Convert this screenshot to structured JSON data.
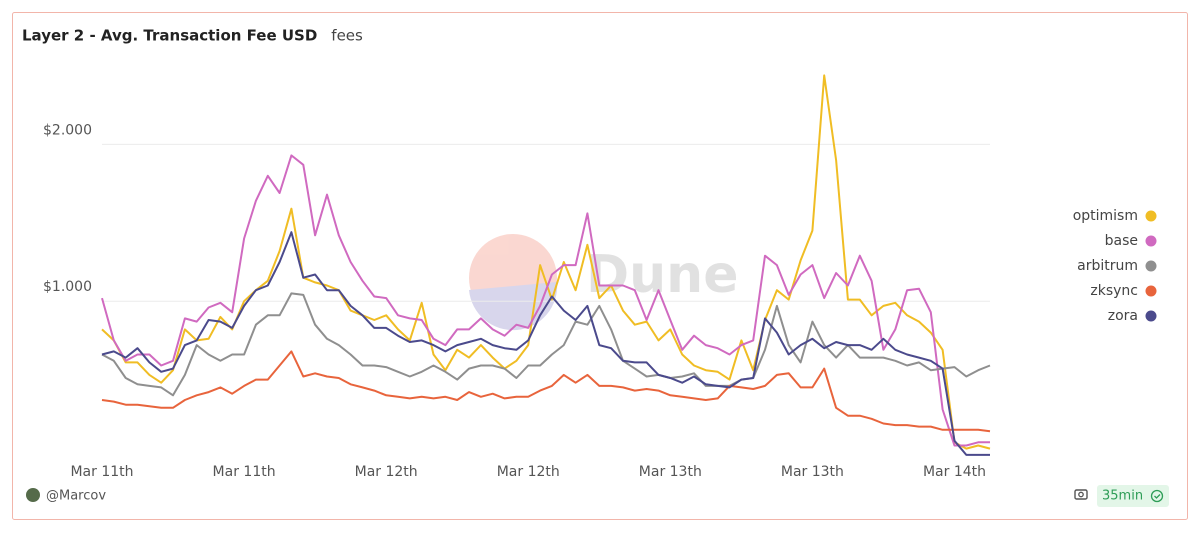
{
  "chart_data": {
    "type": "line",
    "title": "Layer 2 - Avg. Transaction Fee USD",
    "subtitle": "fees",
    "categories": [
      "Mar 11th",
      null,
      null,
      null,
      null,
      null,
      null,
      null,
      null,
      null,
      null,
      null,
      "Mar 11th",
      null,
      null,
      null,
      null,
      null,
      null,
      null,
      null,
      null,
      null,
      null,
      "Mar 12th",
      null,
      null,
      null,
      null,
      null,
      null,
      null,
      null,
      null,
      null,
      null,
      "Mar 12th",
      null,
      null,
      null,
      null,
      null,
      null,
      null,
      null,
      null,
      null,
      null,
      "Mar 13th",
      null,
      null,
      null,
      null,
      null,
      null,
      null,
      null,
      null,
      null,
      null,
      "Mar 13th",
      null,
      null,
      null,
      null,
      null,
      null,
      null,
      null,
      null,
      null,
      null,
      "Mar 14th",
      null,
      null,
      null
    ],
    "ylim": [
      0,
      2.5
    ],
    "yticks": [
      {
        "value": 1,
        "label": "$1.000"
      },
      {
        "value": 2,
        "label": "$2.000"
      }
    ],
    "grid": true,
    "legend": "right",
    "series": [
      {
        "name": "optimism",
        "color": "#f0bd24",
        "values": [
          0.82,
          0.75,
          0.61,
          0.61,
          0.53,
          0.48,
          0.56,
          0.82,
          0.75,
          0.76,
          0.9,
          0.82,
          1.0,
          1.07,
          1.13,
          1.32,
          1.59,
          1.15,
          1.12,
          1.1,
          1.07,
          0.94,
          0.91,
          0.88,
          0.91,
          0.82,
          0.75,
          0.99,
          0.66,
          0.56,
          0.69,
          0.64,
          0.72,
          0.64,
          0.57,
          0.62,
          0.72,
          1.23,
          1.01,
          1.25,
          1.07,
          1.36,
          1.02,
          1.1,
          0.94,
          0.85,
          0.87,
          0.75,
          0.82,
          0.66,
          0.59,
          0.56,
          0.55,
          0.5,
          0.75,
          0.56,
          0.88,
          1.07,
          1.01,
          1.26,
          1.45,
          2.44,
          1.9,
          1.01,
          1.01,
          0.91,
          0.97,
          0.99,
          0.91,
          0.87,
          0.8,
          0.69,
          0.1,
          0.06,
          0.08,
          0.06
        ]
      },
      {
        "name": "base",
        "color": "#d06ac0",
        "values": [
          1.02,
          0.75,
          0.62,
          0.66,
          0.66,
          0.59,
          0.62,
          0.89,
          0.87,
          0.96,
          0.99,
          0.93,
          1.4,
          1.64,
          1.8,
          1.69,
          1.93,
          1.87,
          1.42,
          1.68,
          1.42,
          1.25,
          1.13,
          1.03,
          1.02,
          0.91,
          0.89,
          0.88,
          0.76,
          0.72,
          0.82,
          0.82,
          0.89,
          0.82,
          0.78,
          0.85,
          0.83,
          0.97,
          1.17,
          1.23,
          1.23,
          1.56,
          1.1,
          1.1,
          1.1,
          1.07,
          0.88,
          1.07,
          0.88,
          0.69,
          0.78,
          0.72,
          0.7,
          0.66,
          0.72,
          0.75,
          1.29,
          1.23,
          1.04,
          1.17,
          1.23,
          1.02,
          1.18,
          1.1,
          1.29,
          1.13,
          0.69,
          0.82,
          1.07,
          1.08,
          0.93,
          0.31,
          0.08,
          0.08,
          0.1,
          0.1
        ]
      },
      {
        "name": "arbitrum",
        "color": "#8f8f8f",
        "values": [
          0.66,
          0.62,
          0.51,
          0.47,
          0.46,
          0.45,
          0.4,
          0.53,
          0.72,
          0.66,
          0.62,
          0.66,
          0.66,
          0.85,
          0.91,
          0.91,
          1.05,
          1.04,
          0.85,
          0.76,
          0.72,
          0.66,
          0.59,
          0.59,
          0.58,
          0.55,
          0.52,
          0.55,
          0.59,
          0.55,
          0.5,
          0.57,
          0.59,
          0.59,
          0.57,
          0.51,
          0.59,
          0.59,
          0.66,
          0.72,
          0.87,
          0.85,
          0.97,
          0.82,
          0.62,
          0.57,
          0.52,
          0.53,
          0.51,
          0.52,
          0.54,
          0.46,
          0.46,
          0.46,
          0.5,
          0.51,
          0.69,
          0.97,
          0.72,
          0.61,
          0.87,
          0.72,
          0.64,
          0.72,
          0.64,
          0.64,
          0.64,
          0.62,
          0.59,
          0.61,
          0.56,
          0.57,
          0.58,
          0.52,
          0.56,
          0.59
        ]
      },
      {
        "name": "zksync",
        "color": "#e8643c",
        "values": [
          0.37,
          0.36,
          0.34,
          0.34,
          0.33,
          0.32,
          0.32,
          0.37,
          0.4,
          0.42,
          0.45,
          0.41,
          0.46,
          0.5,
          0.5,
          0.59,
          0.68,
          0.52,
          0.54,
          0.52,
          0.51,
          0.47,
          0.45,
          0.43,
          0.4,
          0.39,
          0.38,
          0.39,
          0.38,
          0.39,
          0.37,
          0.42,
          0.39,
          0.41,
          0.38,
          0.39,
          0.39,
          0.43,
          0.46,
          0.53,
          0.48,
          0.53,
          0.46,
          0.46,
          0.45,
          0.43,
          0.44,
          0.43,
          0.4,
          0.39,
          0.38,
          0.37,
          0.38,
          0.46,
          0.45,
          0.44,
          0.46,
          0.53,
          0.54,
          0.45,
          0.45,
          0.57,
          0.32,
          0.27,
          0.27,
          0.25,
          0.22,
          0.21,
          0.21,
          0.2,
          0.2,
          0.18,
          0.18,
          0.18,
          0.18,
          0.17
        ]
      },
      {
        "name": "zora",
        "color": "#4b4a8c",
        "values": [
          0.66,
          0.68,
          0.64,
          0.7,
          0.61,
          0.55,
          0.57,
          0.72,
          0.75,
          0.88,
          0.87,
          0.83,
          0.97,
          1.07,
          1.1,
          1.25,
          1.44,
          1.15,
          1.17,
          1.07,
          1.07,
          0.97,
          0.91,
          0.83,
          0.83,
          0.78,
          0.74,
          0.75,
          0.72,
          0.68,
          0.72,
          0.74,
          0.76,
          0.72,
          0.7,
          0.69,
          0.75,
          0.91,
          1.03,
          0.94,
          0.88,
          0.97,
          0.72,
          0.7,
          0.62,
          0.61,
          0.61,
          0.53,
          0.51,
          0.48,
          0.52,
          0.47,
          0.46,
          0.45,
          0.5,
          0.51,
          0.89,
          0.8,
          0.66,
          0.72,
          0.76,
          0.7,
          0.74,
          0.72,
          0.72,
          0.69,
          0.76,
          0.69,
          0.66,
          0.64,
          0.62,
          0.57,
          0.11,
          0.02,
          0.02,
          0.02
        ]
      }
    ]
  },
  "watermark": "Dune",
  "footer": {
    "author": "@Marcov",
    "refresh": "35min"
  }
}
